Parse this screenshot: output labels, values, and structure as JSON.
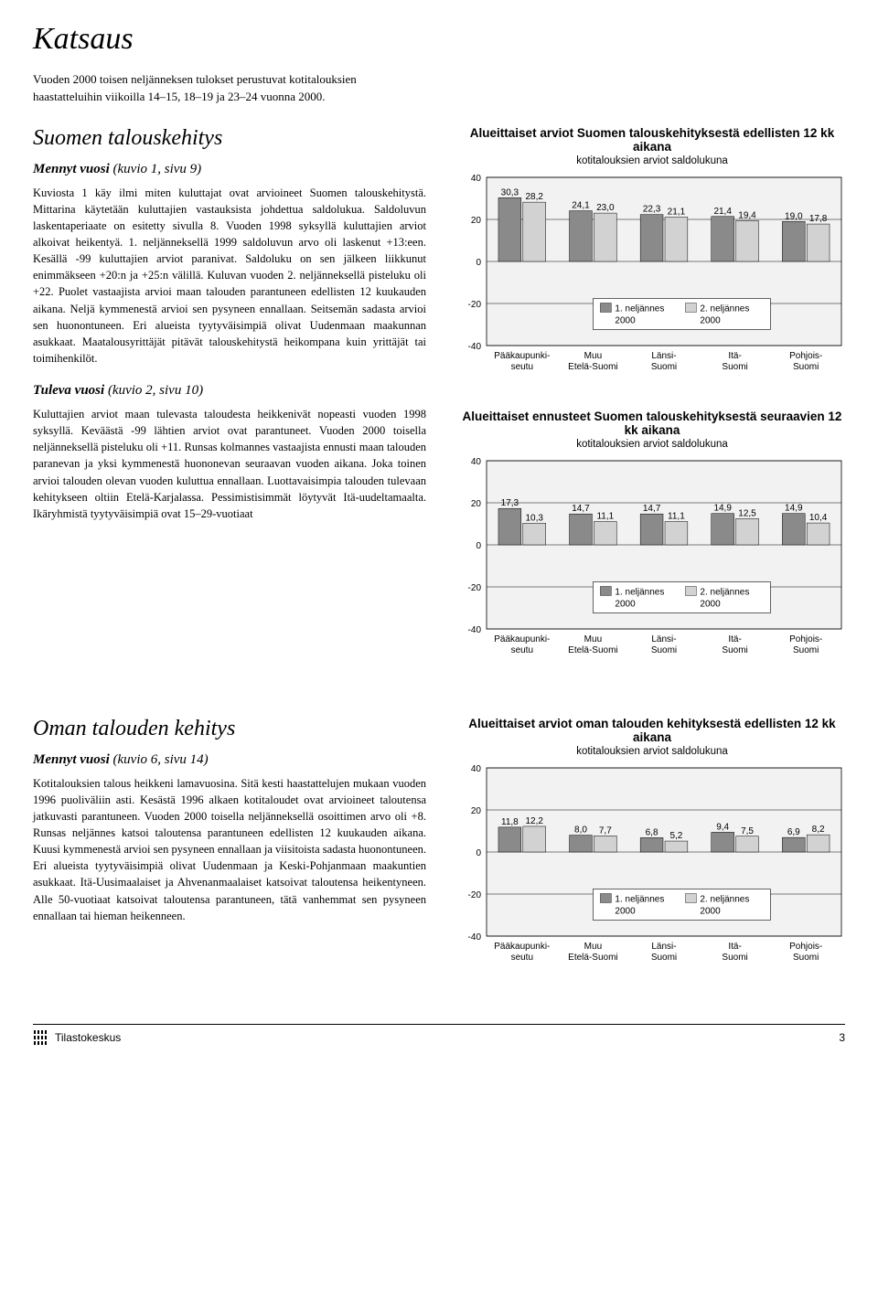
{
  "page": {
    "title": "Katsaus",
    "intro": "Vuoden 2000 toisen neljänneksen tulokset perustuvat kotitalouksien haastatteluihin viikoilla 14–15, 18–19 ja 23–24 vuonna 2000.",
    "page_number": "3",
    "footer_label": "Tilastokeskus"
  },
  "section1": {
    "heading": "Suomen talouskehitys",
    "sub1_bold": "Mennyt vuosi",
    "sub1_rest": " (kuvio 1, sivu 9)",
    "body1": "Kuviosta 1 käy ilmi miten kuluttajat ovat arvioineet Suomen talouskehitystä. Mittarina käytetään kuluttajien vastauksista johdettua saldolukua. Saldoluvun laskentaperiaate on esitetty sivulla 8. Vuoden 1998 syksyllä kuluttajien arviot alkoivat heikentyä. 1. neljänneksellä 1999 saldoluvun arvo oli laskenut +13:een. Kesällä -99 kuluttajien arviot paranivat. Saldoluku on sen jälkeen liikkunut enimmäkseen +20:n ja +25:n välillä. Kuluvan vuoden 2. neljänneksellä pisteluku oli +22. Puolet vastaajista arvioi maan talouden parantuneen edellisten 12 kuukauden aikana. Neljä kymmenestä arvioi sen pysyneen ennallaan. Seitsemän sadasta arvioi sen huonontuneen. Eri alueista tyytyväisimpiä olivat Uudenmaan maakunnan asukkaat. Maatalousyrittäjät pitävät talouskehitystä heikompana kuin yrittäjät tai toimihenkilöt.",
    "sub2_bold": "Tuleva vuosi",
    "sub2_rest": " (kuvio 2, sivu 10)",
    "body2": "Kuluttajien arviot maan tulevasta taloudesta heikkenivät nopeasti vuoden 1998 syksyllä. Keväästä -99 lähtien arviot ovat parantuneet. Vuoden 2000 toisella neljänneksellä pisteluku oli +11. Runsas kolmannes vastaajista ennusti maan talouden paranevan ja yksi kymmenestä huononevan seuraavan vuoden aikana. Joka toinen arvioi talouden olevan vuoden kuluttua ennallaan. Luottavaisimpia talouden tulevaan kehitykseen oltiin Etelä-Karjalassa. Pessimistisimmät löytyvät Itä-uudeltamaalta. Ikäryhmistä tyytyväisimpiä ovat 15–29-vuotiaat"
  },
  "section2": {
    "heading": "Oman talouden kehitys",
    "sub1_bold": "Mennyt vuosi",
    "sub1_rest": " (kuvio 6, sivu 14)",
    "body1": "Kotitalouksien talous heikkeni lamavuosina. Sitä kesti haastattelujen mukaan vuoden 1996 puoliväliin asti. Kesästä 1996 alkaen kotitaloudet ovat arvioineet taloutensa jatkuvasti parantuneen. Vuoden 2000 toisella neljänneksellä osoittimen arvo oli +8. Runsas neljännes katsoi taloutensa parantuneen edellisten 12 kuukauden aikana. Kuusi kymmenestä arvioi sen pysyneen ennallaan ja viisitoista sadasta huonontuneen. Eri alueista tyytyväisimpiä olivat Uudenmaan ja Keski-Pohjanmaan maakuntien asukkaat. Itä-Uusimaalaiset ja Ahvenanmaalaiset katsoivat taloutensa heikentyneen. Alle 50-vuotiaat katsoivat taloutensa parantuneen, tätä vanhemmat sen pysyneen ennallaan tai hieman heikenneen."
  },
  "chart_common": {
    "categories": [
      "Pääkaupunki-\nseutu",
      "Muu\nEtelä-Suomi",
      "Länsi-\nSuomi",
      "Itä-\nSuomi",
      "Pohjois-\nSuomi"
    ],
    "ylim": [
      -40,
      40
    ],
    "ytick_step": 20,
    "label_fontsize": 10,
    "title_fontsize": 13.5,
    "bar_color_1": "#8a8a8a",
    "bar_color_2": "#d2d2d2",
    "grid_color": "#000000",
    "background_color": "#ffffff",
    "plot_background": "#f2f2f2",
    "legend1": "1. neljännes",
    "legend2": "2. neljännes",
    "legend_year": "2000",
    "subtitle": "kotitalouksien arviot saldolukuna"
  },
  "chart1": {
    "title": "Alueittaiset arviot Suomen talouskehityksestä edellisten 12 kk aikana",
    "values_1": [
      30.3,
      24.1,
      22.3,
      21.4,
      19.0
    ],
    "values_2": [
      28.2,
      23.0,
      21.1,
      19.4,
      17.8
    ]
  },
  "chart2": {
    "title": "Alueittaiset ennusteet Suomen talouskehityksestä seuraavien 12 kk aikana",
    "values_1": [
      17.3,
      14.7,
      14.7,
      14.9,
      14.9
    ],
    "values_2": [
      10.3,
      11.1,
      11.1,
      12.5,
      10.4
    ]
  },
  "chart3": {
    "title": "Alueittaiset arviot oman talouden kehityksestä edellisten 12 kk aikana",
    "values_1": [
      11.8,
      8.0,
      6.8,
      9.4,
      6.9
    ],
    "values_2": [
      12.2,
      7.7,
      5.2,
      7.5,
      8.2
    ]
  }
}
